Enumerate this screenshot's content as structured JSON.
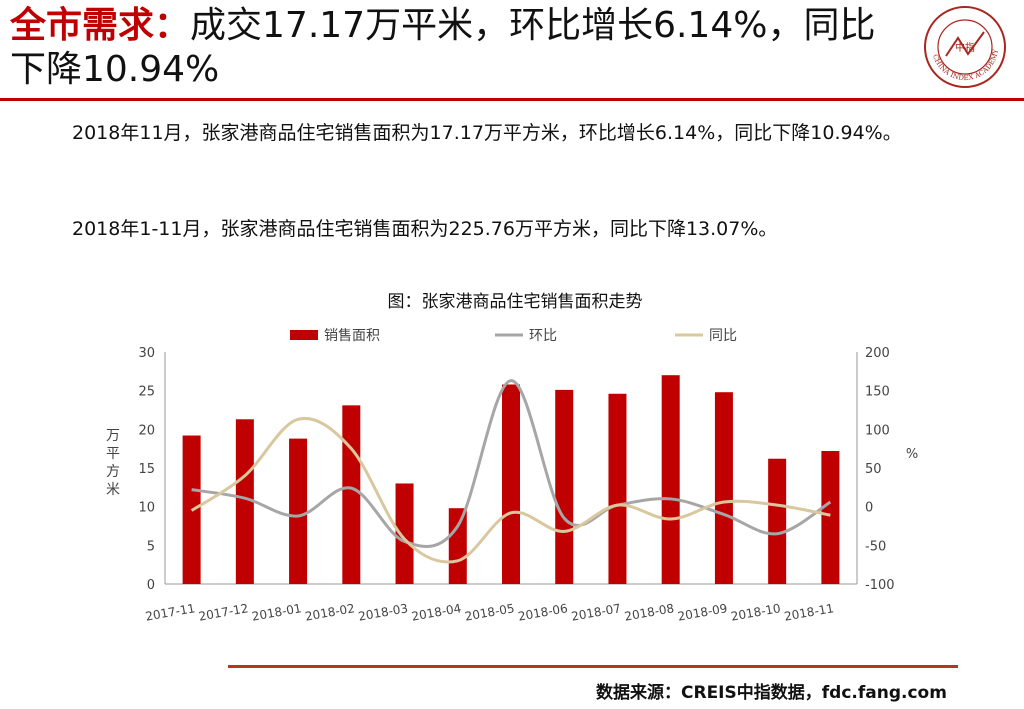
{
  "slide": {
    "title_keyword": "全市需求：",
    "title_rest": "成交17.17万平米，环比增长6.14%，同比下降10.94%",
    "paragraph1": "2018年11月，张家港商品住宅销售面积为17.17万平方米，环比增长6.14%，同比下降10.94%。",
    "paragraph2": "2018年1-11月，张家港商品住宅销售面积为225.76万平方米，同比下降13.07%。",
    "source": "数据来源：CREIS中指数据，fdc.fang.com",
    "logo_center_text": "中指",
    "logo_ring_text": "CHINA INDEX ACADEMY",
    "colors": {
      "accent": "#c00000",
      "bar": "#c00000",
      "mom_line": "#a6a6a6",
      "yoy_line": "#d9c89e"
    }
  },
  "chart_data": {
    "type": "bar",
    "title": "图：张家港商品住宅销售面积走势",
    "categories": [
      "2017-11",
      "2017-12",
      "2018-01",
      "2018-02",
      "2018-03",
      "2018-04",
      "2018-05",
      "2018-06",
      "2018-07",
      "2018-08",
      "2018-09",
      "2018-10",
      "2018-11"
    ],
    "series": [
      {
        "name": "销售面积",
        "type": "bar",
        "axis": "left",
        "values": [
          19.2,
          21.3,
          18.8,
          23.1,
          13.0,
          9.8,
          25.8,
          25.1,
          24.6,
          27.0,
          24.8,
          16.2,
          17.2
        ]
      },
      {
        "name": "环比",
        "type": "line",
        "axis": "right",
        "values": [
          22,
          11,
          -12,
          24,
          -45,
          -25,
          163,
          -15,
          2,
          10,
          -10,
          -35,
          6
        ]
      },
      {
        "name": "同比",
        "type": "line",
        "axis": "right",
        "values": [
          -5,
          40,
          113,
          75,
          -42,
          -70,
          -8,
          -32,
          2,
          -16,
          6,
          2,
          -11
        ]
      }
    ],
    "ylabel": "万平方米",
    "ylabel_right": "%",
    "ylim": [
      0,
      30
    ],
    "y_ticks": [
      0,
      5,
      10,
      15,
      20,
      25,
      30
    ],
    "ylim_right": [
      -100,
      200
    ],
    "y_ticks_right": [
      -100,
      -50,
      0,
      50,
      100,
      150,
      200
    ],
    "legend_position": "top",
    "grid": false
  }
}
